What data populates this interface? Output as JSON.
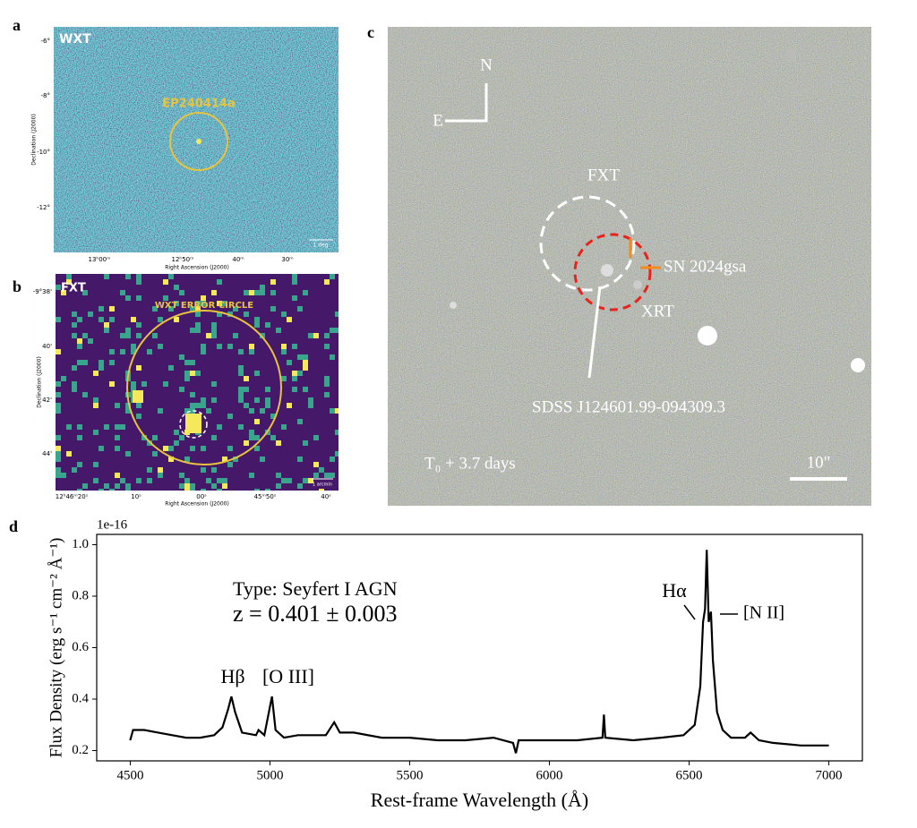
{
  "panels": {
    "a": {
      "letter": "a",
      "instrument": "WXT",
      "source": "EP240414a",
      "yticks": [
        "-6°",
        "-8°",
        "-10°",
        "-12°"
      ],
      "xticks": [
        "13ʰ00ᵐ",
        "12ʰ50ᵐ",
        "40ᵐ",
        "30ᵐ"
      ],
      "ylabel": "Declination (J2000)",
      "xlabel": "Right Ascension (J2000)",
      "scale": "1 deg"
    },
    "b": {
      "letter": "b",
      "instrument": "FXT",
      "circle": "WXT ERROR CIRCLE",
      "yticks": [
        "-9°38'",
        "40'",
        "42'",
        "44'"
      ],
      "xticks": [
        "12ʰ46ᵐ20ˢ",
        "10ˢ",
        "00ˢ",
        "45ᵐ50ˢ",
        "40ˢ"
      ],
      "ylabel": "Declination (J2000)",
      "xlabel": "Right Ascension (J2000)",
      "scale": "1 arcmin"
    },
    "c": {
      "letter": "c",
      "north": "N",
      "east": "E",
      "fxt": "FXT",
      "sn": "SN 2024gsa",
      "xrt": "XRT",
      "host": "SDSS J124601.99-094309.3",
      "epoch": "T₀ + 3.7 days",
      "scale": "10\""
    },
    "d": {
      "letter": "d"
    }
  },
  "chart_data": {
    "type": "line",
    "offset": "1e-16",
    "xlabel": "Rest-frame Wavelength (Å)",
    "ylabel": "Flux Density (erg s⁻¹ cm⁻² Å⁻¹)",
    "annotations": [
      "Type: Seyfert I AGN",
      "z = 0.401 ± 0.003",
      "Hβ",
      "[O III]",
      "Hα",
      "[N II]"
    ],
    "color": "#000000",
    "xlim": [
      4380,
      7120
    ],
    "ylim": [
      0.16,
      1.04
    ],
    "xticks": [
      4500,
      5000,
      5500,
      6000,
      6500,
      7000
    ],
    "yticks": [
      0.2,
      0.4,
      0.6,
      0.8,
      {
        "value": 1,
        "label": "1.0"
      }
    ],
    "x": [
      4500,
      4510,
      4550,
      4600,
      4650,
      4700,
      4750,
      4800,
      4830,
      4850,
      4862,
      4875,
      4900,
      4950,
      4959,
      4980,
      5007,
      5020,
      5050,
      5100,
      5150,
      5200,
      5230,
      5250,
      5300,
      5400,
      5500,
      5600,
      5700,
      5800,
      5870,
      5880,
      5890,
      6000,
      6100,
      6190,
      6195,
      6200,
      6300,
      6400,
      6480,
      6520,
      6540,
      6550,
      6557,
      6563,
      6570,
      6578,
      6585,
      6600,
      6620,
      6650,
      6700,
      6720,
      6750,
      6800,
      6900,
      7000
    ],
    "values": [
      0.24,
      0.28,
      0.28,
      0.27,
      0.26,
      0.25,
      0.25,
      0.26,
      0.29,
      0.36,
      0.41,
      0.35,
      0.27,
      0.26,
      0.28,
      0.26,
      0.41,
      0.28,
      0.25,
      0.26,
      0.26,
      0.26,
      0.31,
      0.27,
      0.27,
      0.25,
      0.25,
      0.24,
      0.24,
      0.25,
      0.23,
      0.19,
      0.24,
      0.24,
      0.24,
      0.25,
      0.34,
      0.25,
      0.24,
      0.25,
      0.26,
      0.3,
      0.45,
      0.7,
      0.75,
      0.98,
      0.7,
      0.74,
      0.55,
      0.35,
      0.28,
      0.25,
      0.25,
      0.27,
      0.24,
      0.23,
      0.22,
      0.22
    ]
  }
}
